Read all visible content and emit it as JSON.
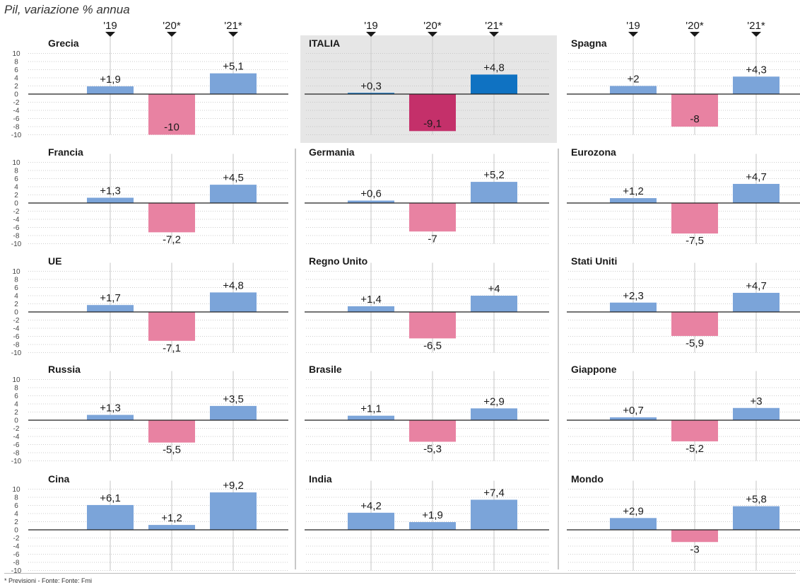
{
  "header": {
    "title": "Pil, variazione % annua"
  },
  "footnote": "* Previsioni - Fonte: Fonte: Fmi",
  "colors": {
    "positive": "#7ba4d9",
    "negative": "#e882a2",
    "italia_positive": "#0f72c2",
    "italia_negative": "#c4306a",
    "highlight_bg": "#e6e6e6"
  },
  "chart_data": [
    {
      "type": "bar",
      "title": "Grecia",
      "categories": [
        "'19",
        "'20*",
        "'21*"
      ],
      "values": [
        1.9,
        -10,
        5.1
      ],
      "labels": [
        "+1,9",
        "-10",
        "+5,1"
      ],
      "ylim": [
        -10,
        10
      ],
      "yticks": [
        "10",
        "8",
        "6",
        "4",
        "2",
        "0",
        "-2",
        "-4",
        "-6",
        "-8",
        "-10"
      ]
    },
    {
      "type": "bar",
      "title": "ITALIA",
      "categories": [
        "'19",
        "'20*",
        "'21*"
      ],
      "values": [
        0.3,
        -9.1,
        4.8
      ],
      "labels": [
        "+0,3",
        "-9,1",
        "+4,8"
      ],
      "ylim": [
        -10,
        10
      ],
      "highlight": true
    },
    {
      "type": "bar",
      "title": "Spagna",
      "categories": [
        "'19",
        "'20*",
        "'21*"
      ],
      "values": [
        2,
        -8,
        4.3
      ],
      "labels": [
        "+2",
        "-8",
        "+4,3"
      ],
      "ylim": [
        -10,
        10
      ]
    },
    {
      "type": "bar",
      "title": "Francia",
      "categories": [
        "'19",
        "'20*",
        "'21*"
      ],
      "values": [
        1.3,
        -7.2,
        4.5
      ],
      "labels": [
        "+1,3",
        "-7,2",
        "+4,5"
      ],
      "ylim": [
        -10,
        10
      ],
      "yticks": [
        "10",
        "8",
        "6",
        "4",
        "2",
        "0",
        "-2",
        "-4",
        "-6",
        "-8",
        "-10"
      ]
    },
    {
      "type": "bar",
      "title": "Germania",
      "categories": [
        "'19",
        "'20*",
        "'21*"
      ],
      "values": [
        0.6,
        -7,
        5.2
      ],
      "labels": [
        "+0,6",
        "-7",
        "+5,2"
      ],
      "ylim": [
        -10,
        10
      ]
    },
    {
      "type": "bar",
      "title": "Eurozona",
      "categories": [
        "'19",
        "'20*",
        "'21*"
      ],
      "values": [
        1.2,
        -7.5,
        4.7
      ],
      "labels": [
        "+1,2",
        "-7,5",
        "+4,7"
      ],
      "ylim": [
        -10,
        10
      ]
    },
    {
      "type": "bar",
      "title": "UE",
      "categories": [
        "'19",
        "'20*",
        "'21*"
      ],
      "values": [
        1.7,
        -7.1,
        4.8
      ],
      "labels": [
        "+1,7",
        "-7,1",
        "+4,8"
      ],
      "ylim": [
        -10,
        10
      ],
      "yticks": [
        "10",
        "8",
        "6",
        "4",
        "2",
        "0",
        "-2",
        "-4",
        "-6",
        "-8",
        "-10"
      ]
    },
    {
      "type": "bar",
      "title": "Regno Unito",
      "categories": [
        "'19",
        "'20*",
        "'21*"
      ],
      "values": [
        1.4,
        -6.5,
        4
      ],
      "labels": [
        "+1,4",
        "-6,5",
        "+4"
      ],
      "ylim": [
        -10,
        10
      ]
    },
    {
      "type": "bar",
      "title": "Stati Uniti",
      "categories": [
        "'19",
        "'20*",
        "'21*"
      ],
      "values": [
        2.3,
        -5.9,
        4.7
      ],
      "labels": [
        "+2,3",
        "-5,9",
        "+4,7"
      ],
      "ylim": [
        -10,
        10
      ]
    },
    {
      "type": "bar",
      "title": "Russia",
      "categories": [
        "'19",
        "'20*",
        "'21*"
      ],
      "values": [
        1.3,
        -5.5,
        3.5
      ],
      "labels": [
        "+1,3",
        "-5,5",
        "+3,5"
      ],
      "ylim": [
        -10,
        10
      ],
      "yticks": [
        "10",
        "8",
        "6",
        "4",
        "2",
        "0",
        "-2",
        "-4",
        "-6",
        "-8",
        "-10"
      ]
    },
    {
      "type": "bar",
      "title": "Brasile",
      "categories": [
        "'19",
        "'20*",
        "'21*"
      ],
      "values": [
        1.1,
        -5.3,
        2.9
      ],
      "labels": [
        "+1,1",
        "-5,3",
        "+2,9"
      ],
      "ylim": [
        -10,
        10
      ]
    },
    {
      "type": "bar",
      "title": "Giappone",
      "categories": [
        "'19",
        "'20*",
        "'21*"
      ],
      "values": [
        0.7,
        -5.2,
        3
      ],
      "labels": [
        "+0,7",
        "-5,2",
        "+3"
      ],
      "ylim": [
        -10,
        10
      ]
    },
    {
      "type": "bar",
      "title": "Cina",
      "categories": [
        "'19",
        "'20*",
        "'21*"
      ],
      "values": [
        6.1,
        1.2,
        9.2
      ],
      "labels": [
        "+6,1",
        "+1,2",
        "+9,2"
      ],
      "ylim": [
        -10,
        10
      ],
      "yticks": [
        "10",
        "8",
        "6",
        "4",
        "2",
        "0",
        "-2",
        "-4",
        "-6",
        "-8",
        "-10"
      ]
    },
    {
      "type": "bar",
      "title": "India",
      "categories": [
        "'19",
        "'20*",
        "'21*"
      ],
      "values": [
        4.2,
        1.9,
        7.4
      ],
      "labels": [
        "+4,2",
        "+1,9",
        "+7,4"
      ],
      "ylim": [
        -10,
        10
      ]
    },
    {
      "type": "bar",
      "title": "Mondo",
      "categories": [
        "'19",
        "'20*",
        "'21*"
      ],
      "values": [
        2.9,
        -3,
        5.8
      ],
      "labels": [
        "+2,9",
        "-3",
        "+5,8"
      ],
      "ylim": [
        -10,
        10
      ]
    }
  ]
}
